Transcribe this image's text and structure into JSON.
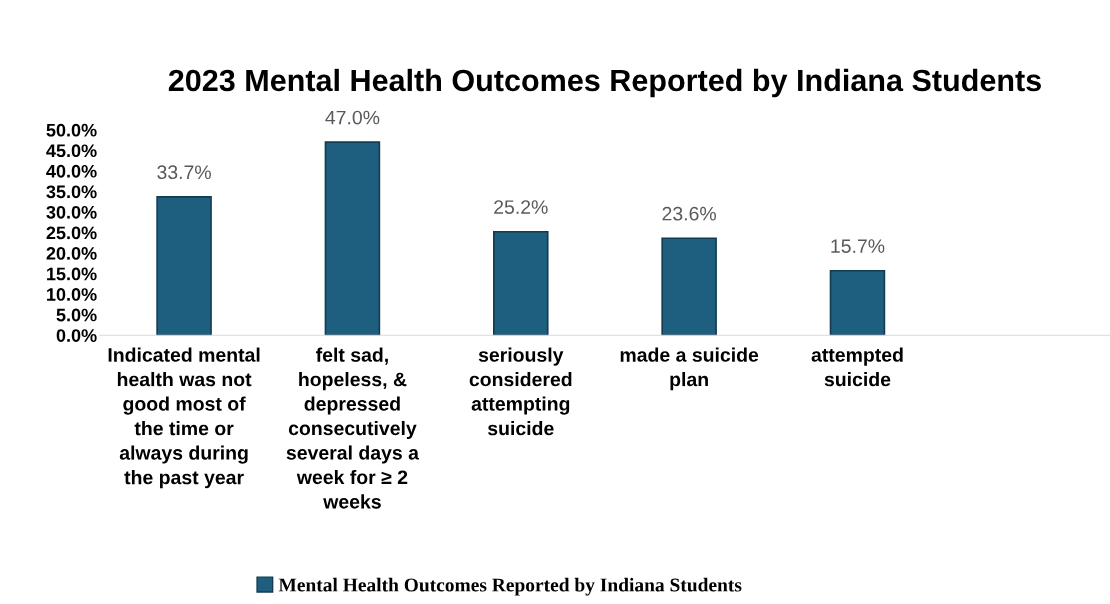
{
  "chart_data": {
    "type": "bar",
    "title": "2023 Mental Health Outcomes Reported by Indiana Students",
    "categories": [
      "Indicated mental health was not good most of the time or always during the past year",
      "felt sad, hopeless, & depressed consecutively several days a week for ≥ 2 weeks",
      "seriously considered attempting suicide",
      "made a suicide plan",
      "attempted suicide",
      null
    ],
    "series": [
      {
        "name": "Mental Health Outcomes Reported by Indiana Students",
        "color": "#1e5f7f",
        "values": [
          33.7,
          47.0,
          25.2,
          23.6,
          15.7,
          null
        ],
        "value_labels": [
          "33.7%",
          "47.0%",
          "25.2%",
          "23.6%",
          "15.7%",
          null
        ]
      }
    ],
    "ylim": [
      0,
      50
    ],
    "yticks": [
      {
        "value": 0,
        "label": "0.0%"
      },
      {
        "value": 5,
        "label": "5.0%"
      },
      {
        "value": 10,
        "label": "10.0%"
      },
      {
        "value": 15,
        "label": "15.0%"
      },
      {
        "value": 20,
        "label": "20.0%"
      },
      {
        "value": 25,
        "label": "25.0%"
      },
      {
        "value": 30,
        "label": "30.0%"
      },
      {
        "value": 35,
        "label": "35.0%"
      },
      {
        "value": 40,
        "label": "40.0%"
      },
      {
        "value": 45,
        "label": "45.0%"
      },
      {
        "value": 50,
        "label": "50.0%"
      }
    ],
    "grid": false,
    "legend": "bottom"
  }
}
